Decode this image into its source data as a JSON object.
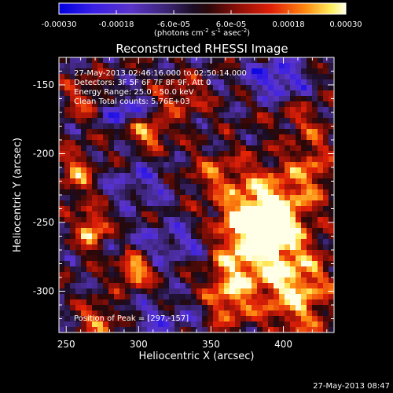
{
  "chart_data": {
    "type": "heatmap",
    "title": "Reconstructed RHESSI Image",
    "xlabel": "Heliocentric X (arcsec)",
    "ylabel": "Heliocentric Y (arcsec)",
    "xlim": [
      245,
      435
    ],
    "ylim": [
      -330,
      -130
    ],
    "x_ticks": [
      250,
      300,
      350,
      400
    ],
    "y_ticks": [
      -150,
      -200,
      -250,
      -300
    ],
    "colorbar": {
      "min": -0.0003,
      "max": 0.0003,
      "tick_values": [
        -0.0003,
        -0.00018,
        -6e-05,
        6e-05,
        0.00018,
        0.0003
      ],
      "tick_labels": [
        "-0.00030",
        "-0.00018",
        "-6.0e-05",
        "6.0e-05",
        "0.00018",
        "0.00030"
      ],
      "units_text": "(photons cm",
      "units_exp1": "-2",
      "units_mid": " s",
      "units_exp2": "-1",
      "units_mid2": " asec",
      "units_exp3": "-2",
      "units_close": ")"
    },
    "annotations": [
      "27-May-2013 02:46:16.000 to 02:50:14.000",
      "Detectors: 3F 5F 6F 7F 8F 9F, Att 0",
      "Energy Range: 25.0 - 50.0 keV",
      "Clean     Total counts: 5.76E+03"
    ],
    "peak_label": "Position of Peak = [297,-157]",
    "footer": "27-May-2013 08:47",
    "bright_regions": [
      {
        "x": 375,
        "y": -260,
        "sx": 18,
        "sy": 28,
        "amp": 0.00033
      },
      {
        "x": 395,
        "y": -245,
        "sx": 14,
        "sy": 20,
        "amp": 0.00028
      },
      {
        "x": 410,
        "y": -300,
        "sx": 16,
        "sy": 24,
        "amp": 0.00026
      },
      {
        "x": 362,
        "y": -305,
        "sx": 10,
        "sy": 14,
        "amp": 0.0002
      },
      {
        "x": 297,
        "y": -285,
        "sx": 8,
        "sy": 8,
        "amp": 0.0003
      },
      {
        "x": 268,
        "y": -255,
        "sx": 7,
        "sy": 10,
        "amp": 0.00028
      },
      {
        "x": 258,
        "y": -215,
        "sx": 9,
        "sy": 12,
        "amp": 0.0002
      },
      {
        "x": 307,
        "y": -185,
        "sx": 10,
        "sy": 7,
        "amp": 0.00025
      },
      {
        "x": 330,
        "y": -160,
        "sx": 12,
        "sy": 10,
        "amp": 0.00016
      },
      {
        "x": 350,
        "y": -215,
        "sx": 14,
        "sy": 9,
        "amp": 0.00014
      },
      {
        "x": 273,
        "y": -320,
        "sx": 10,
        "sy": 8,
        "amp": 0.0002
      },
      {
        "x": 420,
        "y": -210,
        "sx": 10,
        "sy": 18,
        "amp": 0.00018
      },
      {
        "x": 262,
        "y": -160,
        "sx": 10,
        "sy": 10,
        "amp": 0.00014
      },
      {
        "x": 410,
        "y": -175,
        "sx": 12,
        "sy": 8,
        "amp": 0.0001
      }
    ],
    "dark_regions": [
      {
        "x": 395,
        "y": -145,
        "sx": 14,
        "sy": 9,
        "amp": -0.00022
      },
      {
        "x": 290,
        "y": -168,
        "sx": 10,
        "sy": 8,
        "amp": -0.00018
      },
      {
        "x": 328,
        "y": -265,
        "sx": 22,
        "sy": 10,
        "amp": -0.00014
      },
      {
        "x": 300,
        "y": -222,
        "sx": 20,
        "sy": 10,
        "amp": -0.00012
      },
      {
        "x": 315,
        "y": -320,
        "sx": 18,
        "sy": 8,
        "amp": -0.00012
      }
    ]
  }
}
